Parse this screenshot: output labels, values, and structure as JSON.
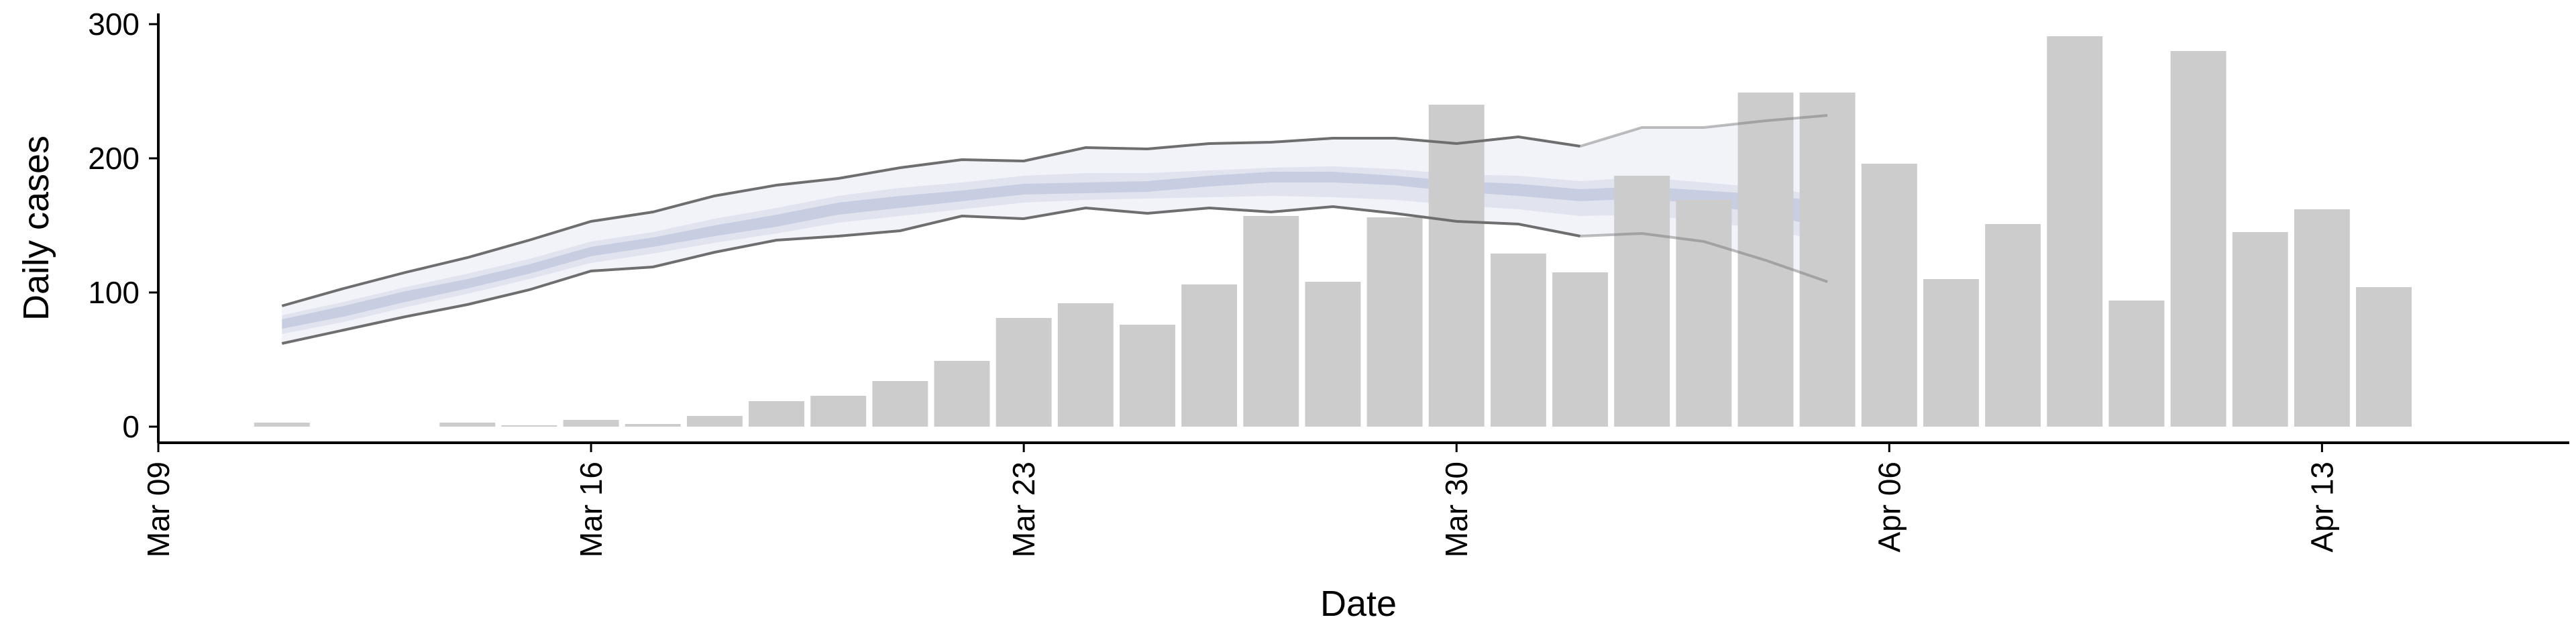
{
  "chart_data": {
    "type": "bar",
    "xlabel": "Date",
    "ylabel": "Daily cases",
    "x_axis": {
      "type": "date",
      "start": "2020-03-09",
      "end": "2020-04-17",
      "ticks": [
        {
          "date": "2020-03-09",
          "label": "Mar 09"
        },
        {
          "date": "2020-03-16",
          "label": "Mar 16"
        },
        {
          "date": "2020-03-23",
          "label": "Mar 23"
        },
        {
          "date": "2020-03-30",
          "label": "Mar 30"
        },
        {
          "date": "2020-04-06",
          "label": "Apr 06"
        },
        {
          "date": "2020-04-13",
          "label": "Apr 13"
        }
      ]
    },
    "y_axis": {
      "ylim": [
        -12,
        308
      ],
      "ticks": [
        0,
        100,
        200,
        300
      ]
    },
    "grid": false,
    "bar_color": "#cccccc",
    "bars": [
      {
        "date": "2020-03-11",
        "value": 3
      },
      {
        "date": "2020-03-14",
        "value": 3
      },
      {
        "date": "2020-03-15",
        "value": 1
      },
      {
        "date": "2020-03-16",
        "value": 5
      },
      {
        "date": "2020-03-17",
        "value": 2
      },
      {
        "date": "2020-03-18",
        "value": 8
      },
      {
        "date": "2020-03-19",
        "value": 19
      },
      {
        "date": "2020-03-20",
        "value": 23
      },
      {
        "date": "2020-03-21",
        "value": 34
      },
      {
        "date": "2020-03-22",
        "value": 49
      },
      {
        "date": "2020-03-23",
        "value": 81
      },
      {
        "date": "2020-03-24",
        "value": 92
      },
      {
        "date": "2020-03-25",
        "value": 76
      },
      {
        "date": "2020-03-26",
        "value": 106
      },
      {
        "date": "2020-03-27",
        "value": 157
      },
      {
        "date": "2020-03-28",
        "value": 108
      },
      {
        "date": "2020-03-29",
        "value": 156
      },
      {
        "date": "2020-03-30",
        "value": 240
      },
      {
        "date": "2020-03-31",
        "value": 129
      },
      {
        "date": "2020-04-01",
        "value": 115
      },
      {
        "date": "2020-04-02",
        "value": 187
      },
      {
        "date": "2020-04-03",
        "value": 169
      },
      {
        "date": "2020-04-04",
        "value": 249
      },
      {
        "date": "2020-04-05",
        "value": 249
      },
      {
        "date": "2020-04-06",
        "value": 196
      },
      {
        "date": "2020-04-07",
        "value": 110
      },
      {
        "date": "2020-04-08",
        "value": 151
      },
      {
        "date": "2020-04-09",
        "value": 291
      },
      {
        "date": "2020-04-10",
        "value": 94
      },
      {
        "date": "2020-04-11",
        "value": 280
      },
      {
        "date": "2020-04-12",
        "value": 145
      },
      {
        "date": "2020-04-13",
        "value": 162
      },
      {
        "date": "2020-04-14",
        "value": 104
      }
    ],
    "band_color": "#aab3d1",
    "nowcast_band": {
      "dates": [
        "2020-03-11",
        "2020-03-12",
        "2020-03-13",
        "2020-03-14",
        "2020-03-15",
        "2020-03-16",
        "2020-03-17",
        "2020-03-18",
        "2020-03-19",
        "2020-03-20",
        "2020-03-21",
        "2020-03-22",
        "2020-03-23",
        "2020-03-24",
        "2020-03-25",
        "2020-03-26",
        "2020-03-27",
        "2020-03-28",
        "2020-03-29",
        "2020-03-30",
        "2020-03-31",
        "2020-04-01",
        "2020-04-02",
        "2020-04-03",
        "2020-04-04",
        "2020-04-05"
      ],
      "outer_upper": [
        90,
        103,
        115,
        126,
        139,
        153,
        160,
        172,
        180,
        185,
        193,
        199,
        198,
        208,
        207,
        211,
        212,
        215,
        215,
        211,
        216,
        209,
        223,
        223,
        228,
        232
      ],
      "outer_lower": [
        62,
        72,
        82,
        91,
        102,
        116,
        119,
        130,
        139,
        142,
        146,
        157,
        155,
        163,
        159,
        163,
        160,
        164,
        159,
        153,
        151,
        142,
        144,
        138,
        124,
        108
      ],
      "mid_upper": [
        83,
        93,
        104,
        114,
        125,
        138,
        145,
        155,
        163,
        172,
        178,
        182,
        187,
        189,
        189,
        191,
        193,
        194,
        192,
        188,
        187,
        183,
        186,
        182,
        178,
        172
      ],
      "mid_lower": [
        69,
        78,
        89,
        99,
        110,
        122,
        129,
        137,
        144,
        152,
        157,
        162,
        167,
        169,
        170,
        171,
        172,
        171,
        169,
        165,
        162,
        157,
        158,
        153,
        147,
        138
      ],
      "inner_upper": [
        80,
        90,
        101,
        110,
        121,
        134,
        141,
        150,
        158,
        167,
        172,
        176,
        181,
        182,
        183,
        187,
        190,
        190,
        187,
        183,
        181,
        177,
        179,
        176,
        173,
        167
      ],
      "inner_lower": [
        73,
        82,
        93,
        103,
        114,
        127,
        134,
        142,
        149,
        158,
        163,
        168,
        173,
        174,
        175,
        179,
        182,
        182,
        180,
        175,
        172,
        168,
        170,
        166,
        158,
        148
      ]
    }
  }
}
